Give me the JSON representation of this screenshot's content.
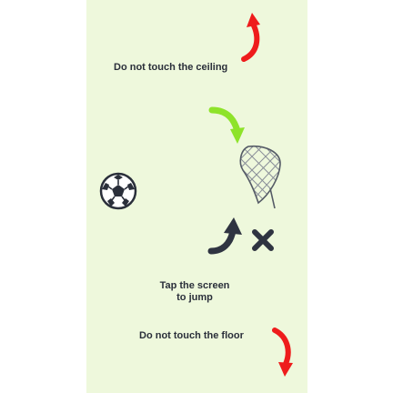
{
  "instructions": {
    "ceiling_warning": "Do not touch the ceiling",
    "tap_hint_line1": "Tap the screen",
    "tap_hint_line2": "to jump",
    "floor_warning": "Do not touch the floor"
  },
  "icons": {
    "ball": "soccer-ball-icon",
    "net": "goal-net-icon",
    "ceiling_arrow": "curved-arrow-up-icon",
    "floor_arrow": "curved-arrow-down-icon",
    "target_arrow": "curved-arrow-down-right-icon",
    "jump_arrow": "curved-arrow-up-right-icon",
    "miss": "x-mark-icon"
  },
  "colors": {
    "background": "#eef8dc",
    "warning_arrow": "#ee1c1c",
    "target_arrow": "#8ee32a",
    "dark_icon": "#2f3441",
    "text": "#2a2f3a"
  }
}
